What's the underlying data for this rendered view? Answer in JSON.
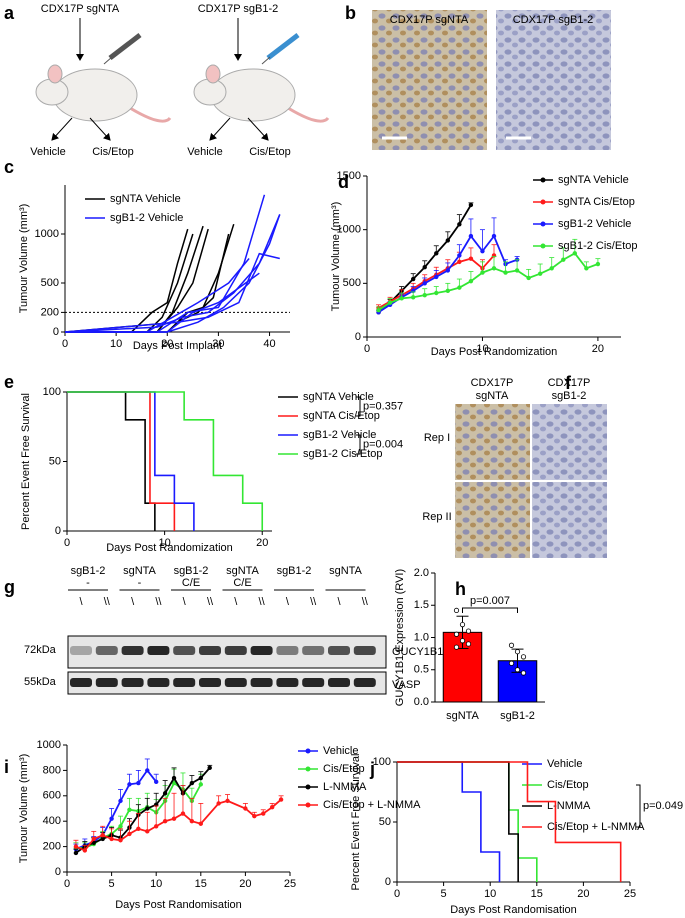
{
  "panels": {
    "a": {
      "label": "a",
      "groups": [
        {
          "title": "CDX17P sgNTA",
          "arms": [
            "Vehicle",
            "Cis/Etop"
          ]
        },
        {
          "title": "CDX17P sgB1-2",
          "arms": [
            "Vehicle",
            "Cis/Etop"
          ]
        }
      ]
    },
    "b": {
      "label": "b",
      "images": [
        "CDX17P sgNTA",
        "CDX17P sgB1-2"
      ]
    },
    "f": {
      "label": "f",
      "columns": [
        [
          "CDX17P",
          "sgNTA"
        ],
        [
          "CDX17P",
          "sgB1-2"
        ]
      ],
      "rows": [
        "Rep I",
        "Rep II"
      ]
    },
    "g": {
      "label": "g",
      "groups": [
        {
          "line": "sgB1-2",
          "treatment": "-"
        },
        {
          "line": "sgNTA",
          "treatment": "-"
        },
        {
          "line": "sgB1-2",
          "treatment": "C/E"
        },
        {
          "line": "sgNTA",
          "treatment": "C/E"
        },
        {
          "line": "sgB1-2"
        },
        {
          "line": "sgNTA"
        }
      ],
      "lanes": [
        "\\",
        "\\\\",
        "\\",
        "\\\\",
        "\\",
        "\\\\",
        "\\",
        "\\\\",
        "\\",
        "\\\\",
        "\\",
        "\\\\"
      ],
      "markers": [
        "72kDa",
        "55kDa"
      ],
      "proteins": [
        "GUCY1B1",
        "VASP"
      ]
    }
  },
  "chart_data": [
    {
      "panel_label": "c",
      "type": "line",
      "xlabel": "Days Post Implant",
      "ylabel": "Tumour Volume (mm³)",
      "xlim": [
        0,
        44
      ],
      "xticks": [
        0,
        10,
        20,
        30,
        40
      ],
      "ylim": [
        0,
        1500
      ],
      "yticks": [
        0,
        200,
        500,
        1000
      ],
      "hline": 200,
      "series": [
        {
          "name": "sgNTA Vehicle",
          "color": "#000000",
          "mice": [
            {
              "x": [
                0,
                13,
                17,
                20,
                22,
                24
              ],
              "values": [
                0,
                0,
                200,
                300,
                700,
                1050
              ]
            },
            {
              "x": [
                0,
                16,
                19,
                22,
                25
              ],
              "values": [
                0,
                0,
                150,
                500,
                1000
              ]
            },
            {
              "x": [
                0,
                18,
                21,
                24,
                27
              ],
              "values": [
                0,
                0,
                200,
                600,
                1080
              ]
            },
            {
              "x": [
                0,
                18,
                22,
                25,
                28
              ],
              "values": [
                0,
                0,
                250,
                500,
                1050
              ]
            },
            {
              "x": [
                0,
                20,
                24,
                27,
                30,
                33
              ],
              "values": [
                0,
                0,
                200,
                250,
                600,
                1100
              ]
            },
            {
              "x": [
                0,
                22,
                26,
                29,
                32
              ],
              "values": [
                0,
                100,
                200,
                350,
                1000
              ]
            }
          ]
        },
        {
          "name": "sgB1-2 Vehicle",
          "color": "#1a1aff",
          "mice": [
            {
              "x": [
                0,
                16,
                21,
                26,
                32,
                36
              ],
              "values": [
                0,
                0,
                150,
                300,
                500,
                750
              ]
            },
            {
              "x": [
                0,
                18,
                24,
                30,
                35,
                39
              ],
              "values": [
                0,
                0,
                200,
                250,
                700,
                1400
              ]
            },
            {
              "x": [
                0,
                20,
                26,
                31,
                36,
                40,
                42
              ],
              "values": [
                0,
                0,
                100,
                250,
                500,
                900,
                1200
              ]
            },
            {
              "x": [
                0,
                18,
                23,
                28,
                33,
                38,
                42
              ],
              "values": [
                0,
                50,
                150,
                200,
                400,
                700,
                1200
              ]
            },
            {
              "x": [
                0,
                20,
                25,
                30,
                34,
                38
              ],
              "values": [
                0,
                0,
                200,
                300,
                450,
                600
              ]
            },
            {
              "x": [
                0,
                22,
                28,
                34,
                38,
                42
              ],
              "values": [
                0,
                100,
                150,
                300,
                800,
                750
              ]
            }
          ]
        }
      ]
    },
    {
      "panel_label": "d",
      "type": "line",
      "xlabel": "Days Post Randomization",
      "ylabel": "Tumour Volume (mm³)",
      "xlim": [
        0,
        22
      ],
      "xticks": [
        0,
        10,
        20
      ],
      "ylim": [
        0,
        1500
      ],
      "yticks": [
        0,
        500,
        1000,
        1500
      ],
      "series": [
        {
          "name": "sgNTA Vehicle",
          "color": "#000000",
          "x": [
            1,
            2,
            3,
            4,
            5,
            6,
            7,
            8,
            9
          ],
          "values": [
            230,
            320,
            430,
            540,
            650,
            780,
            900,
            1050,
            1230
          ],
          "errors": [
            20,
            30,
            40,
            50,
            60,
            70,
            80,
            90,
            20
          ]
        },
        {
          "name": "sgNTA Cis/Etop",
          "color": "#ff1a1a",
          "x": [
            1,
            2,
            3,
            4,
            5,
            6,
            7,
            8,
            9,
            10,
            11
          ],
          "values": [
            270,
            330,
            390,
            450,
            520,
            580,
            640,
            700,
            730,
            640,
            760
          ],
          "errors": [
            30,
            40,
            50,
            50,
            60,
            70,
            80,
            90,
            100,
            80,
            100
          ]
        },
        {
          "name": "sgB1-2 Vehicle",
          "color": "#1a1aff",
          "x": [
            1,
            2,
            3,
            4,
            5,
            6,
            7,
            8,
            9,
            10,
            11,
            12,
            13
          ],
          "values": [
            230,
            300,
            370,
            430,
            500,
            560,
            620,
            760,
            940,
            800,
            940,
            680,
            720
          ],
          "errors": [
            20,
            30,
            30,
            40,
            50,
            60,
            70,
            100,
            160,
            200,
            170,
            40,
            30
          ]
        },
        {
          "name": "sgB1-2 Cis/Etop",
          "color": "#33e633",
          "x": [
            1,
            2,
            3,
            4,
            5,
            6,
            7,
            8,
            9,
            10,
            11,
            12,
            13,
            14,
            15,
            16,
            17,
            18,
            19,
            20
          ],
          "values": [
            250,
            320,
            360,
            370,
            390,
            410,
            430,
            460,
            520,
            600,
            640,
            600,
            620,
            550,
            590,
            640,
            720,
            780,
            640,
            680
          ],
          "errors": [
            30,
            40,
            50,
            50,
            60,
            60,
            70,
            80,
            90,
            100,
            110,
            100,
            100,
            80,
            90,
            100,
            110,
            130,
            60,
            50
          ]
        }
      ]
    },
    {
      "panel_label": "e",
      "type": "step",
      "xlabel": "Days Post Randomization",
      "ylabel": "Percent Event Free Survival",
      "xlim": [
        0,
        21
      ],
      "xticks": [
        0,
        10,
        20
      ],
      "ylim": [
        0,
        100
      ],
      "yticks": [
        0,
        50,
        100
      ],
      "annotations": [
        "p=0.357",
        "p=0.004"
      ],
      "series": [
        {
          "name": "sgNTA Vehicle",
          "color": "#000000",
          "x": [
            0,
            6,
            8,
            9
          ],
          "values": [
            100,
            80,
            20,
            0
          ]
        },
        {
          "name": "sgNTA Cis/Etop",
          "color": "#ff1a1a",
          "x": [
            0,
            8.5,
            11
          ],
          "values": [
            100,
            20,
            0
          ]
        },
        {
          "name": "sgB1-2 Vehicle",
          "color": "#1a1aff",
          "x": [
            0,
            9,
            11,
            13
          ],
          "values": [
            100,
            40,
            20,
            0
          ]
        },
        {
          "name": "sgB1-2 Cis/Etop",
          "color": "#33e633",
          "x": [
            0,
            12,
            15,
            18,
            20
          ],
          "values": [
            100,
            80,
            40,
            20,
            0
          ]
        }
      ]
    },
    {
      "panel_label": "h",
      "type": "bar",
      "ylabel": "GUCY1B1 Expression (RVI)",
      "categories": [
        "sgNTA",
        "sgB1-2"
      ],
      "values": [
        1.08,
        0.64
      ],
      "errors": [
        0.25,
        0.18
      ],
      "colors": [
        "#ff0000",
        "#0000ff"
      ],
      "points": [
        [
          1.42,
          1.2,
          1.1,
          1.05,
          0.95,
          0.9,
          0.85
        ],
        [
          0.88,
          0.78,
          0.7,
          0.6,
          0.5,
          0.45
        ]
      ],
      "ylim": [
        0,
        2
      ],
      "yticks": [
        {
          "value": 0,
          "label": "0.0"
        },
        0.5,
        {
          "value": 1,
          "label": "1.0"
        },
        1.5,
        {
          "value": 2,
          "label": "2.0"
        }
      ],
      "annotation": "p=0.007"
    },
    {
      "panel_label": "i",
      "type": "line",
      "xlabel": "Days Post Randomisation",
      "ylabel": "Tumour Volume (mm³)",
      "xlim": [
        0,
        25
      ],
      "xticks": [
        0,
        5,
        10,
        15,
        20,
        25
      ],
      "ylim": [
        0,
        1000
      ],
      "yticks": [
        0,
        200,
        400,
        600,
        800,
        1000
      ],
      "series": [
        {
          "name": "Vehicle",
          "color": "#1a1aff",
          "x": [
            1,
            2,
            3,
            4,
            5,
            6,
            7,
            8,
            9,
            10
          ],
          "values": [
            180,
            210,
            240,
            290,
            420,
            560,
            690,
            700,
            800,
            710
          ],
          "errors": [
            40,
            50,
            40,
            60,
            80,
            90,
            80,
            100,
            90,
            60
          ]
        },
        {
          "name": "Cis/Etop",
          "color": "#33e633",
          "x": [
            1,
            2,
            3,
            4,
            5,
            6,
            7,
            8,
            9,
            10,
            11,
            12,
            13,
            14,
            15
          ],
          "values": [
            190,
            190,
            220,
            270,
            300,
            360,
            490,
            480,
            510,
            470,
            560,
            700,
            650,
            560,
            690
          ],
          "errors": [
            40,
            40,
            50,
            50,
            60,
            80,
            90,
            100,
            110,
            100,
            120,
            110,
            130,
            100,
            80
          ]
        },
        {
          "name": "L-NMMA",
          "color": "#000000",
          "x": [
            1,
            2,
            3,
            4,
            5,
            6,
            7,
            8,
            9,
            10,
            11,
            12,
            13,
            14,
            15,
            16
          ],
          "values": [
            150,
            200,
            230,
            260,
            290,
            270,
            350,
            450,
            500,
            530,
            620,
            740,
            620,
            700,
            740,
            820
          ],
          "errors": [
            30,
            40,
            40,
            50,
            60,
            60,
            70,
            80,
            80,
            90,
            100,
            80,
            60,
            60,
            50,
            20
          ]
        },
        {
          "name": "Cis/Etop + L-NMMA",
          "color": "#ff1a1a",
          "x": [
            1,
            2,
            3,
            4,
            5,
            6,
            7,
            8,
            9,
            10,
            11,
            12,
            13,
            14,
            15,
            17,
            18,
            20,
            21,
            22,
            23,
            24
          ],
          "values": [
            200,
            170,
            260,
            290,
            260,
            250,
            300,
            340,
            320,
            360,
            400,
            420,
            460,
            400,
            380,
            540,
            560,
            500,
            440,
            460,
            510,
            570
          ],
          "errors": [
            50,
            40,
            60,
            70,
            80,
            90,
            100,
            120,
            150,
            160,
            180,
            200,
            220,
            180,
            160,
            60,
            50,
            40,
            30,
            30,
            30,
            30
          ]
        }
      ]
    },
    {
      "panel_label": "j",
      "type": "step",
      "xlabel": "Days Post Randomisation",
      "ylabel": "Percent Event Free Survival",
      "xlim": [
        0,
        25
      ],
      "xticks": [
        0,
        5,
        10,
        15,
        20,
        25
      ],
      "ylim": [
        0,
        100
      ],
      "yticks": [
        0,
        50,
        100
      ],
      "annotation": "p=0.049",
      "series": [
        {
          "name": "Vehicle",
          "color": "#1a1aff",
          "x": [
            0,
            7,
            9,
            11
          ],
          "values": [
            100,
            75,
            25,
            0
          ]
        },
        {
          "name": "Cis/Etop",
          "color": "#33e633",
          "x": [
            0,
            12,
            13,
            15
          ],
          "values": [
            100,
            60,
            20,
            0
          ]
        },
        {
          "name": "L-NMMA",
          "color": "#000000",
          "x": [
            0,
            12,
            13
          ],
          "values": [
            100,
            40,
            0
          ]
        },
        {
          "name": "Cis/Etop + L-NMMA",
          "color": "#ff1a1a",
          "x": [
            0,
            14,
            17,
            24
          ],
          "values": [
            100,
            67,
            33,
            0
          ]
        }
      ]
    }
  ]
}
